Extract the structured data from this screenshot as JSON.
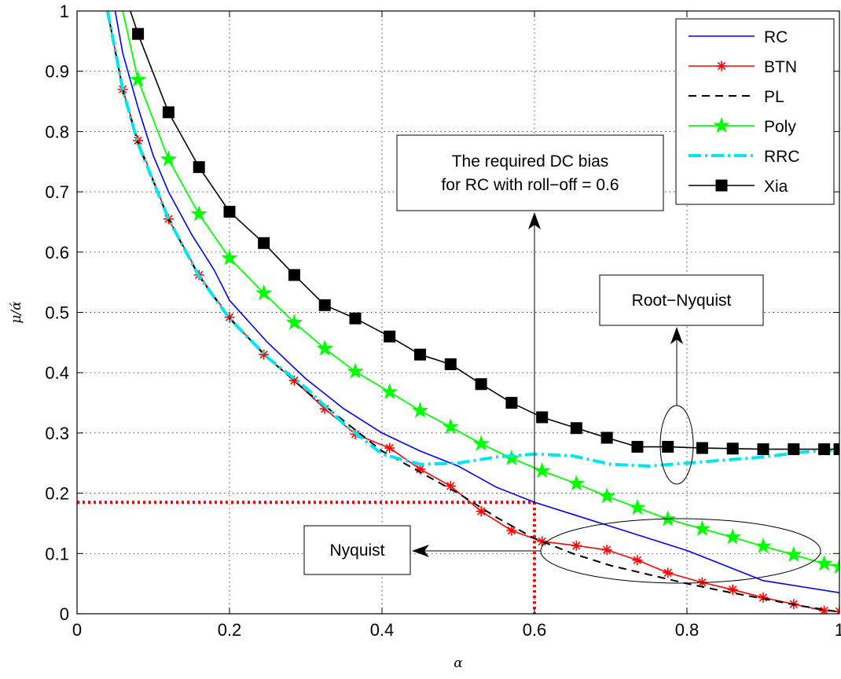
{
  "chart_data": {
    "type": "line",
    "xlabel": "α",
    "ylabel": "μ/ά",
    "xlim": [
      0,
      1
    ],
    "ylim": [
      0,
      1
    ],
    "x_ticks": [
      "0",
      "0.2",
      "0.4",
      "0.6",
      "0.8",
      "1"
    ],
    "y_ticks": [
      "0",
      "0.1",
      "0.2",
      "0.3",
      "0.4",
      "0.5",
      "0.6",
      "0.7",
      "0.8",
      "0.9",
      "1"
    ],
    "grid": true,
    "legend_position": "top-right",
    "series": [
      {
        "name": "RC",
        "color": "#0000ff",
        "dash": "",
        "marker": "none",
        "points": [
          [
            0.05,
            1.0
          ],
          [
            0.06,
            0.93
          ],
          [
            0.08,
            0.84
          ],
          [
            0.1,
            0.76
          ],
          [
            0.12,
            0.7
          ],
          [
            0.15,
            0.63
          ],
          [
            0.18,
            0.57
          ],
          [
            0.2,
            0.52
          ],
          [
            0.25,
            0.45
          ],
          [
            0.3,
            0.39
          ],
          [
            0.35,
            0.34
          ],
          [
            0.4,
            0.3
          ],
          [
            0.45,
            0.27
          ],
          [
            0.5,
            0.245
          ],
          [
            0.55,
            0.21
          ],
          [
            0.6,
            0.185
          ],
          [
            0.65,
            0.165
          ],
          [
            0.7,
            0.145
          ],
          [
            0.75,
            0.125
          ],
          [
            0.8,
            0.105
          ],
          [
            0.85,
            0.08
          ],
          [
            0.9,
            0.055
          ],
          [
            0.95,
            0.045
          ],
          [
            1.0,
            0.035
          ]
        ]
      },
      {
        "name": "BTN",
        "color": "#ff0000",
        "dash": "",
        "marker": "asterisk",
        "points": [
          [
            0.04,
            1.0
          ],
          [
            0.06,
            0.87
          ],
          [
            0.08,
            0.785
          ],
          [
            0.12,
            0.655
          ],
          [
            0.16,
            0.562
          ],
          [
            0.2,
            0.492
          ],
          [
            0.245,
            0.43
          ],
          [
            0.285,
            0.387
          ],
          [
            0.325,
            0.34
          ],
          [
            0.365,
            0.298
          ],
          [
            0.41,
            0.275
          ],
          [
            0.45,
            0.24
          ],
          [
            0.49,
            0.212
          ],
          [
            0.53,
            0.17
          ],
          [
            0.57,
            0.138
          ],
          [
            0.61,
            0.12
          ],
          [
            0.655,
            0.113
          ],
          [
            0.695,
            0.106
          ],
          [
            0.735,
            0.089
          ],
          [
            0.775,
            0.068
          ],
          [
            0.82,
            0.052
          ],
          [
            0.86,
            0.04
          ],
          [
            0.9,
            0.027
          ],
          [
            0.94,
            0.016
          ],
          [
            0.98,
            0.005
          ],
          [
            1.0,
            0.004
          ]
        ]
      },
      {
        "name": "PL",
        "color": "#000000",
        "dash": "10,7",
        "marker": "none",
        "points": [
          [
            0.04,
            1.0
          ],
          [
            0.06,
            0.87
          ],
          [
            0.08,
            0.78
          ],
          [
            0.12,
            0.655
          ],
          [
            0.16,
            0.56
          ],
          [
            0.2,
            0.49
          ],
          [
            0.25,
            0.425
          ],
          [
            0.3,
            0.37
          ],
          [
            0.35,
            0.32
          ],
          [
            0.4,
            0.27
          ],
          [
            0.45,
            0.235
          ],
          [
            0.5,
            0.2
          ],
          [
            0.55,
            0.16
          ],
          [
            0.6,
            0.125
          ],
          [
            0.65,
            0.1
          ],
          [
            0.7,
            0.08
          ],
          [
            0.75,
            0.065
          ],
          [
            0.8,
            0.05
          ],
          [
            0.85,
            0.037
          ],
          [
            0.9,
            0.025
          ],
          [
            0.95,
            0.013
          ],
          [
            1.0,
            0.003
          ]
        ]
      },
      {
        "name": "Poly",
        "color": "#00ff00",
        "dash": "",
        "marker": "star",
        "points": [
          [
            0.06,
            1.0
          ],
          [
            0.08,
            0.886
          ],
          [
            0.12,
            0.754
          ],
          [
            0.16,
            0.663
          ],
          [
            0.2,
            0.59
          ],
          [
            0.245,
            0.532
          ],
          [
            0.285,
            0.483
          ],
          [
            0.325,
            0.44
          ],
          [
            0.365,
            0.402
          ],
          [
            0.41,
            0.368
          ],
          [
            0.45,
            0.337
          ],
          [
            0.49,
            0.31
          ],
          [
            0.53,
            0.282
          ],
          [
            0.57,
            0.258
          ],
          [
            0.61,
            0.237
          ],
          [
            0.655,
            0.216
          ],
          [
            0.695,
            0.195
          ],
          [
            0.735,
            0.176
          ],
          [
            0.775,
            0.157
          ],
          [
            0.82,
            0.141
          ],
          [
            0.86,
            0.127
          ],
          [
            0.9,
            0.112
          ],
          [
            0.94,
            0.098
          ],
          [
            0.98,
            0.083
          ],
          [
            1.0,
            0.078
          ]
        ]
      },
      {
        "name": "RRC",
        "color": "#00e5ee",
        "dash": "16,5,3,5",
        "marker": "none",
        "points": [
          [
            0.04,
            1.0
          ],
          [
            0.06,
            0.87
          ],
          [
            0.08,
            0.78
          ],
          [
            0.12,
            0.655
          ],
          [
            0.16,
            0.56
          ],
          [
            0.2,
            0.49
          ],
          [
            0.25,
            0.425
          ],
          [
            0.3,
            0.375
          ],
          [
            0.35,
            0.315
          ],
          [
            0.4,
            0.265
          ],
          [
            0.45,
            0.248
          ],
          [
            0.5,
            0.25
          ],
          [
            0.55,
            0.26
          ],
          [
            0.6,
            0.265
          ],
          [
            0.65,
            0.262
          ],
          [
            0.7,
            0.248
          ],
          [
            0.75,
            0.245
          ],
          [
            0.8,
            0.25
          ],
          [
            0.85,
            0.255
          ],
          [
            0.9,
            0.26
          ],
          [
            0.95,
            0.268
          ],
          [
            1.0,
            0.272
          ]
        ]
      },
      {
        "name": "Xia",
        "color": "#000000",
        "dash": "",
        "marker": "square",
        "points": [
          [
            0.07,
            1.0
          ],
          [
            0.08,
            0.962
          ],
          [
            0.12,
            0.832
          ],
          [
            0.16,
            0.741
          ],
          [
            0.2,
            0.667
          ],
          [
            0.245,
            0.615
          ],
          [
            0.285,
            0.562
          ],
          [
            0.325,
            0.512
          ],
          [
            0.365,
            0.49
          ],
          [
            0.41,
            0.46
          ],
          [
            0.45,
            0.43
          ],
          [
            0.49,
            0.414
          ],
          [
            0.53,
            0.381
          ],
          [
            0.57,
            0.35
          ],
          [
            0.61,
            0.326
          ],
          [
            0.655,
            0.308
          ],
          [
            0.695,
            0.292
          ],
          [
            0.735,
            0.277
          ],
          [
            0.775,
            0.277
          ],
          [
            0.82,
            0.275
          ],
          [
            0.86,
            0.274
          ],
          [
            0.9,
            0.273
          ],
          [
            0.94,
            0.273
          ],
          [
            0.98,
            0.273
          ],
          [
            1.0,
            0.273
          ]
        ]
      }
    ],
    "annotations": [
      {
        "id": "dc-bias",
        "lines": [
          "The required DC bias",
          "for RC with roll−off = 0.6"
        ]
      },
      {
        "id": "root-nyquist",
        "lines": [
          "Root−Nyquist"
        ]
      },
      {
        "id": "nyquist",
        "lines": [
          "Nyquist"
        ]
      }
    ],
    "reference_point": {
      "x": 0.6,
      "y": 0.185,
      "color": "#ff0000"
    }
  }
}
